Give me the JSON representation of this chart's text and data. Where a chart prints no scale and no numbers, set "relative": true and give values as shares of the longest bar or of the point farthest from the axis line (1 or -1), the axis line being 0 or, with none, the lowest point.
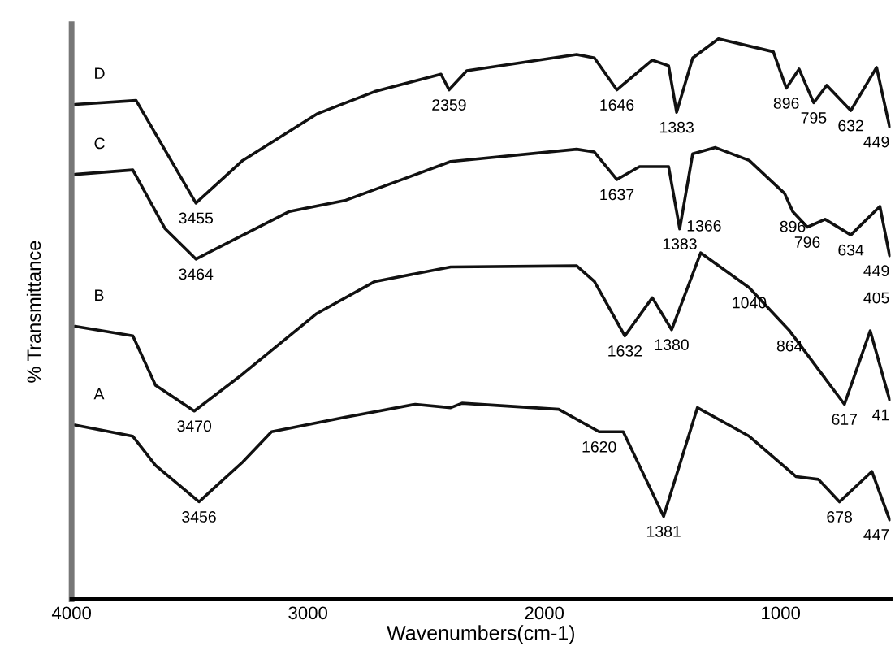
{
  "chart_data": {
    "type": "line",
    "relative": true,
    "xlabel": "Wavenumbers(cm-1)",
    "ylabel": "% Transmittance",
    "xlim": [
      4000,
      535
    ],
    "xticks": [
      4000,
      3000,
      2000,
      1000
    ],
    "tick_labels": "x",
    "series": [
      {
        "name": "D",
        "color": "#111111",
        "x": [
          3986,
          3727,
          3474,
          3276,
          2962,
          2717,
          2437,
          2403,
          2328,
          1863,
          1788,
          1693,
          1543,
          1474,
          1440,
          1372,
          1263,
          1031,
          976,
          922,
          860,
          805,
          703,
          594,
          539
        ],
        "values": [
          0.883,
          0.89,
          0.707,
          0.783,
          0.866,
          0.906,
          0.937,
          0.909,
          0.943,
          0.972,
          0.966,
          0.909,
          0.962,
          0.952,
          0.869,
          0.966,
          1.0,
          0.977,
          0.912,
          0.946,
          0.886,
          0.917,
          0.872,
          0.949,
          0.843
        ]
      },
      {
        "name": "C",
        "color": "#111111",
        "x": [
          3986,
          3741,
          3604,
          3474,
          3078,
          2840,
          2396,
          1863,
          1788,
          1693,
          1597,
          1474,
          1427,
          1372,
          1276,
          1133,
          983,
          949,
          887,
          812,
          703,
          580,
          539
        ],
        "values": [
          0.758,
          0.766,
          0.661,
          0.607,
          0.692,
          0.712,
          0.781,
          0.803,
          0.798,
          0.749,
          0.772,
          0.772,
          0.661,
          0.795,
          0.806,
          0.783,
          0.724,
          0.692,
          0.664,
          0.678,
          0.65,
          0.701,
          0.613
        ]
      },
      {
        "name": "B",
        "color": "#111111",
        "x": [
          3986,
          3741,
          3645,
          3481,
          3276,
          2962,
          2717,
          2396,
          1863,
          1788,
          1659,
          1543,
          1461,
          1338,
          1133,
          962,
          730,
          621,
          539
        ],
        "values": [
          0.487,
          0.47,
          0.382,
          0.336,
          0.402,
          0.51,
          0.567,
          0.593,
          0.595,
          0.567,
          0.47,
          0.538,
          0.481,
          0.618,
          0.556,
          0.479,
          0.348,
          0.479,
          0.356
        ]
      },
      {
        "name": "A",
        "color": "#111111",
        "x": [
          3986,
          3741,
          3645,
          3461,
          3276,
          3154,
          2840,
          2546,
          2396,
          2348,
          1939,
          1768,
          1666,
          1495,
          1352,
          1133,
          935,
          840,
          751,
          614,
          539
        ],
        "values": [
          0.311,
          0.291,
          0.239,
          0.174,
          0.245,
          0.299,
          0.325,
          0.348,
          0.342,
          0.35,
          0.339,
          0.299,
          0.299,
          0.148,
          0.342,
          0.291,
          0.219,
          0.214,
          0.174,
          0.228,
          0.142
        ]
      }
    ],
    "annotations": [
      {
        "text": "3455",
        "x": 3474,
        "y": 0.707
      },
      {
        "text": "2359",
        "x": 2403,
        "y": 0.909
      },
      {
        "text": "1646",
        "x": 1693,
        "y": 0.909
      },
      {
        "text": "1383",
        "x": 1440,
        "y": 0.869
      },
      {
        "text": "896",
        "x": 976,
        "y": 0.912
      },
      {
        "text": "795",
        "x": 860,
        "y": 0.886
      },
      {
        "text": "632",
        "x": 703,
        "y": 0.872
      },
      {
        "text": "449",
        "x": 539,
        "y": 0.843
      },
      {
        "text": "3464",
        "x": 3474,
        "y": 0.607
      },
      {
        "text": "1637",
        "x": 1693,
        "y": 0.749
      },
      {
        "text": "1383",
        "x": 1427,
        "y": 0.661
      },
      {
        "text": "1366",
        "x": 1427,
        "y": 0.661
      },
      {
        "text": "896",
        "x": 949,
        "y": 0.692
      },
      {
        "text": "796",
        "x": 887,
        "y": 0.664
      },
      {
        "text": "634",
        "x": 703,
        "y": 0.65
      },
      {
        "text": "449",
        "x": 539,
        "y": 0.613
      },
      {
        "text": "405",
        "x": 539,
        "y": 0.613
      },
      {
        "text": "3470",
        "x": 3481,
        "y": 0.336
      },
      {
        "text": "1632",
        "x": 1659,
        "y": 0.47
      },
      {
        "text": "1380",
        "x": 1461,
        "y": 0.481
      },
      {
        "text": "1040",
        "x": 1133,
        "y": 0.556
      },
      {
        "text": "864",
        "x": 962,
        "y": 0.479
      },
      {
        "text": "617",
        "x": 730,
        "y": 0.348
      },
      {
        "text": "41",
        "x": 539,
        "y": 0.356
      },
      {
        "text": "3456",
        "x": 3461,
        "y": 0.174
      },
      {
        "text": "1620",
        "x": 1768,
        "y": 0.299
      },
      {
        "text": "1381",
        "x": 1495,
        "y": 0.148
      },
      {
        "text": "678",
        "x": 751,
        "y": 0.174
      },
      {
        "text": "447",
        "x": 539,
        "y": 0.142
      }
    ]
  }
}
